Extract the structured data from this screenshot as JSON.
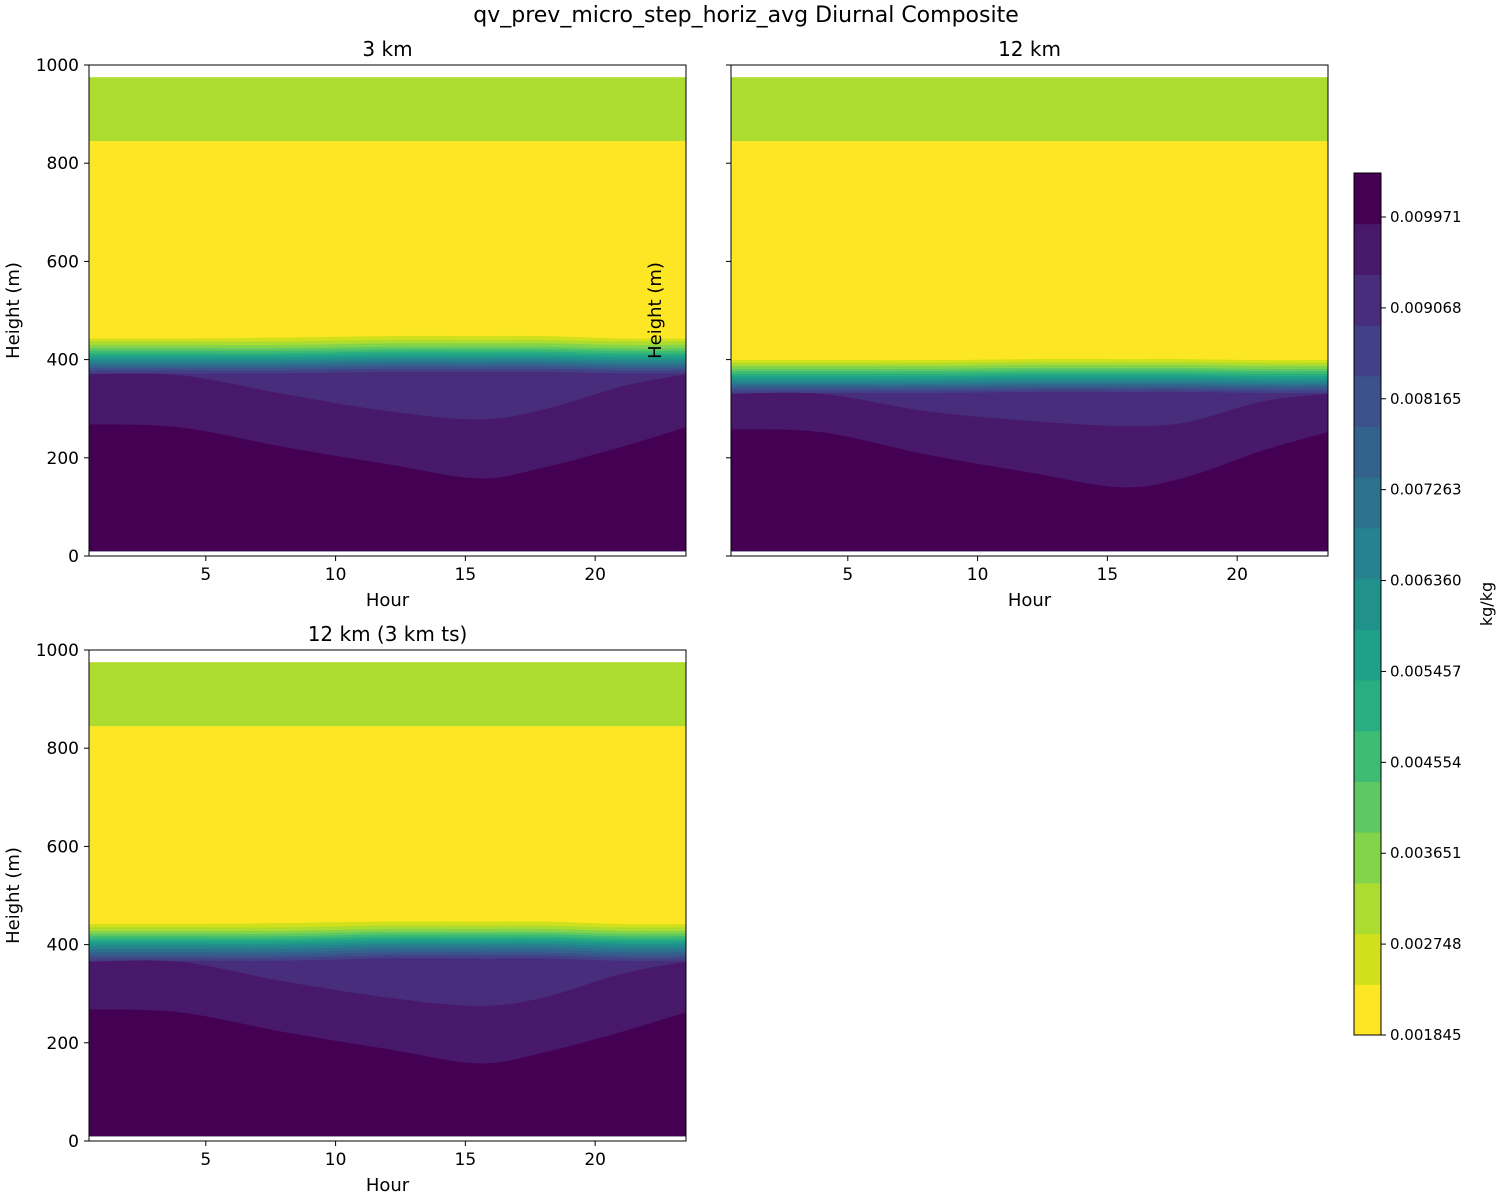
{
  "figure": {
    "title": "qv_prev_micro_step_horiz_avg Diurnal Composite",
    "colorbar": {
      "label": "kg/kg",
      "tick_labels": [
        "0.009971",
        "0.009068",
        "0.008165",
        "0.007263",
        "0.006360",
        "0.005457",
        "0.004554",
        "0.003651",
        "0.002748",
        "0.001845"
      ],
      "colors_low_to_high": [
        "#fde725",
        "#d0e11c",
        "#addc30",
        "#84d44b",
        "#5ec962",
        "#3fbc73",
        "#28ae80",
        "#1fa088",
        "#21918c",
        "#26828e",
        "#2c728e",
        "#33638d",
        "#3b528b",
        "#424086",
        "#472d7b",
        "#48186a",
        "#440154"
      ]
    }
  },
  "chart_data": [
    {
      "type": "heatmap",
      "title": "3 km",
      "xlabel": "Hour",
      "ylabel": "Height (m)",
      "xlim": [
        0.5,
        23.5
      ],
      "ylim": [
        0,
        1000
      ],
      "xticks": [
        5,
        10,
        15,
        20
      ],
      "yticks": [
        0,
        200,
        400,
        600,
        800,
        1000
      ],
      "data_bottom": 10,
      "data_top": 975,
      "static_layers": [
        {
          "bottom": 605,
          "top": 845,
          "color_index": 0
        },
        {
          "bottom": 845,
          "top": 975,
          "color_index": 2
        }
      ],
      "profile_hours": [
        0.5,
        4,
        8,
        12,
        15.5,
        18,
        21,
        23.5
      ],
      "boundaries": [
        {
          "heights": [
            268,
            262,
            222,
            187,
            158,
            180,
            222,
            262
          ],
          "color_index": 16
        },
        {
          "heights": [
            370,
            368,
            330,
            295,
            278,
            298,
            345,
            370
          ],
          "color_index": 15
        },
        {
          "heights": [
            372,
            372,
            372,
            375,
            375,
            375,
            372,
            372
          ],
          "color_index": 14
        },
        {
          "heights": [
            378,
            378,
            378,
            381,
            381,
            381,
            378,
            378
          ],
          "color_index": 13
        },
        {
          "heights": [
            383,
            383,
            383,
            386,
            386,
            386,
            383,
            383
          ],
          "color_index": 12
        },
        {
          "heights": [
            388,
            388,
            388,
            391,
            391,
            391,
            388,
            388
          ],
          "color_index": 11
        },
        {
          "heights": [
            393,
            393,
            393,
            396,
            396,
            396,
            393,
            393
          ],
          "color_index": 10
        },
        {
          "heights": [
            398,
            398,
            398,
            401,
            401,
            401,
            398,
            398
          ],
          "color_index": 9
        },
        {
          "heights": [
            403,
            403,
            403,
            406,
            406,
            406,
            403,
            403
          ],
          "color_index": 8
        },
        {
          "heights": [
            408,
            408,
            408,
            411,
            411,
            411,
            408,
            408
          ],
          "color_index": 7
        },
        {
          "heights": [
            413,
            413,
            413,
            416,
            416,
            416,
            413,
            413
          ],
          "color_index": 6
        },
        {
          "heights": [
            418,
            418,
            418,
            421,
            421,
            421,
            418,
            418
          ],
          "color_index": 5
        },
        {
          "heights": [
            423,
            423,
            423,
            426,
            426,
            426,
            423,
            423
          ],
          "color_index": 4
        },
        {
          "heights": [
            430,
            430,
            430,
            433,
            433,
            433,
            430,
            430
          ],
          "color_index": 3
        },
        {
          "heights": [
            437,
            437,
            437,
            440,
            440,
            440,
            437,
            437
          ],
          "color_index": 2
        },
        {
          "heights": [
            443,
            443,
            445,
            448,
            448,
            448,
            443,
            443
          ],
          "color_index": 1
        }
      ],
      "fill_above_color_index": 0
    },
    {
      "type": "heatmap",
      "title": "12 km",
      "xlabel": "Hour",
      "ylabel": "Height (m)",
      "xlim": [
        0.5,
        23.5
      ],
      "ylim": [
        0,
        1000
      ],
      "xticks": [
        5,
        10,
        15,
        20
      ],
      "yticks": [
        0,
        200,
        400,
        600,
        800,
        1000
      ],
      "show_ytick_labels": false,
      "data_bottom": 10,
      "data_top": 975,
      "static_layers": [
        {
          "bottom": 605,
          "top": 845,
          "color_index": 0
        },
        {
          "bottom": 845,
          "top": 975,
          "color_index": 2
        }
      ],
      "profile_hours": [
        0.5,
        4,
        8,
        12,
        15.5,
        18,
        21,
        23.5
      ],
      "boundaries": [
        {
          "heights": [
            258,
            252,
            207,
            170,
            140,
            160,
            215,
            252
          ],
          "color_index": 16
        },
        {
          "heights": [
            330,
            330,
            295,
            275,
            265,
            272,
            315,
            330
          ],
          "color_index": 15
        },
        {
          "heights": [
            332,
            332,
            332,
            334,
            334,
            334,
            332,
            332
          ],
          "color_index": 14
        },
        {
          "heights": [
            337,
            337,
            337,
            339,
            339,
            339,
            337,
            337
          ],
          "color_index": 13
        },
        {
          "heights": [
            342,
            342,
            342,
            344,
            344,
            344,
            342,
            342
          ],
          "color_index": 12
        },
        {
          "heights": [
            347,
            347,
            347,
            349,
            349,
            349,
            347,
            347
          ],
          "color_index": 11
        },
        {
          "heights": [
            351,
            351,
            351,
            353,
            353,
            353,
            351,
            351
          ],
          "color_index": 10
        },
        {
          "heights": [
            356,
            356,
            356,
            358,
            358,
            358,
            356,
            356
          ],
          "color_index": 9
        },
        {
          "heights": [
            361,
            361,
            361,
            363,
            363,
            363,
            361,
            361
          ],
          "color_index": 8
        },
        {
          "heights": [
            366,
            366,
            366,
            368,
            368,
            368,
            366,
            366
          ],
          "color_index": 7
        },
        {
          "heights": [
            371,
            371,
            371,
            373,
            373,
            373,
            371,
            371
          ],
          "color_index": 6
        },
        {
          "heights": [
            376,
            376,
            376,
            378,
            378,
            378,
            376,
            376
          ],
          "color_index": 5
        },
        {
          "heights": [
            381,
            381,
            381,
            383,
            383,
            383,
            381,
            381
          ],
          "color_index": 4
        },
        {
          "heights": [
            387,
            387,
            387,
            389,
            389,
            389,
            387,
            387
          ],
          "color_index": 3
        },
        {
          "heights": [
            393,
            393,
            393,
            395,
            395,
            395,
            393,
            393
          ],
          "color_index": 2
        },
        {
          "heights": [
            399,
            399,
            399,
            401,
            401,
            401,
            399,
            399
          ],
          "color_index": 1
        }
      ],
      "fill_above_color_index": 0
    },
    {
      "type": "heatmap",
      "title": "12 km (3 km ts)",
      "xlabel": "Hour",
      "ylabel": "Height (m)",
      "xlim": [
        0.5,
        23.5
      ],
      "ylim": [
        0,
        1000
      ],
      "xticks": [
        5,
        10,
        15,
        20
      ],
      "yticks": [
        0,
        200,
        400,
        600,
        800,
        1000
      ],
      "data_bottom": 10,
      "data_top": 975,
      "static_layers": [
        {
          "bottom": 605,
          "top": 845,
          "color_index": 0
        },
        {
          "bottom": 845,
          "top": 975,
          "color_index": 2
        }
      ],
      "profile_hours": [
        0.5,
        4,
        8,
        12,
        15.5,
        18,
        21,
        23.5
      ],
      "boundaries": [
        {
          "heights": [
            268,
            262,
            222,
            187,
            158,
            180,
            222,
            262
          ],
          "color_index": 16
        },
        {
          "heights": [
            365,
            365,
            325,
            292,
            275,
            292,
            340,
            365
          ],
          "color_index": 15
        },
        {
          "heights": [
            367,
            367,
            367,
            372,
            372,
            372,
            367,
            367
          ],
          "color_index": 14
        },
        {
          "heights": [
            373,
            373,
            373,
            378,
            378,
            378,
            373,
            373
          ],
          "color_index": 13
        },
        {
          "heights": [
            379,
            379,
            379,
            384,
            384,
            384,
            379,
            379
          ],
          "color_index": 12
        },
        {
          "heights": [
            385,
            385,
            385,
            390,
            390,
            390,
            385,
            385
          ],
          "color_index": 11
        },
        {
          "heights": [
            391,
            391,
            391,
            396,
            396,
            396,
            391,
            391
          ],
          "color_index": 10
        },
        {
          "heights": [
            397,
            397,
            397,
            401,
            401,
            401,
            397,
            397
          ],
          "color_index": 9
        },
        {
          "heights": [
            402,
            402,
            402,
            406,
            406,
            406,
            402,
            402
          ],
          "color_index": 8
        },
        {
          "heights": [
            407,
            407,
            407,
            411,
            411,
            411,
            407,
            407
          ],
          "color_index": 7
        },
        {
          "heights": [
            412,
            412,
            412,
            416,
            416,
            416,
            412,
            412
          ],
          "color_index": 6
        },
        {
          "heights": [
            417,
            417,
            417,
            421,
            421,
            421,
            417,
            417
          ],
          "color_index": 5
        },
        {
          "heights": [
            422,
            422,
            422,
            426,
            426,
            426,
            422,
            422
          ],
          "color_index": 4
        },
        {
          "heights": [
            428,
            428,
            428,
            432,
            432,
            432,
            428,
            428
          ],
          "color_index": 3
        },
        {
          "heights": [
            435,
            435,
            435,
            439,
            439,
            439,
            435,
            435
          ],
          "color_index": 2
        },
        {
          "heights": [
            442,
            442,
            444,
            447,
            447,
            447,
            442,
            442
          ],
          "color_index": 1
        }
      ],
      "fill_above_color_index": 0
    }
  ]
}
